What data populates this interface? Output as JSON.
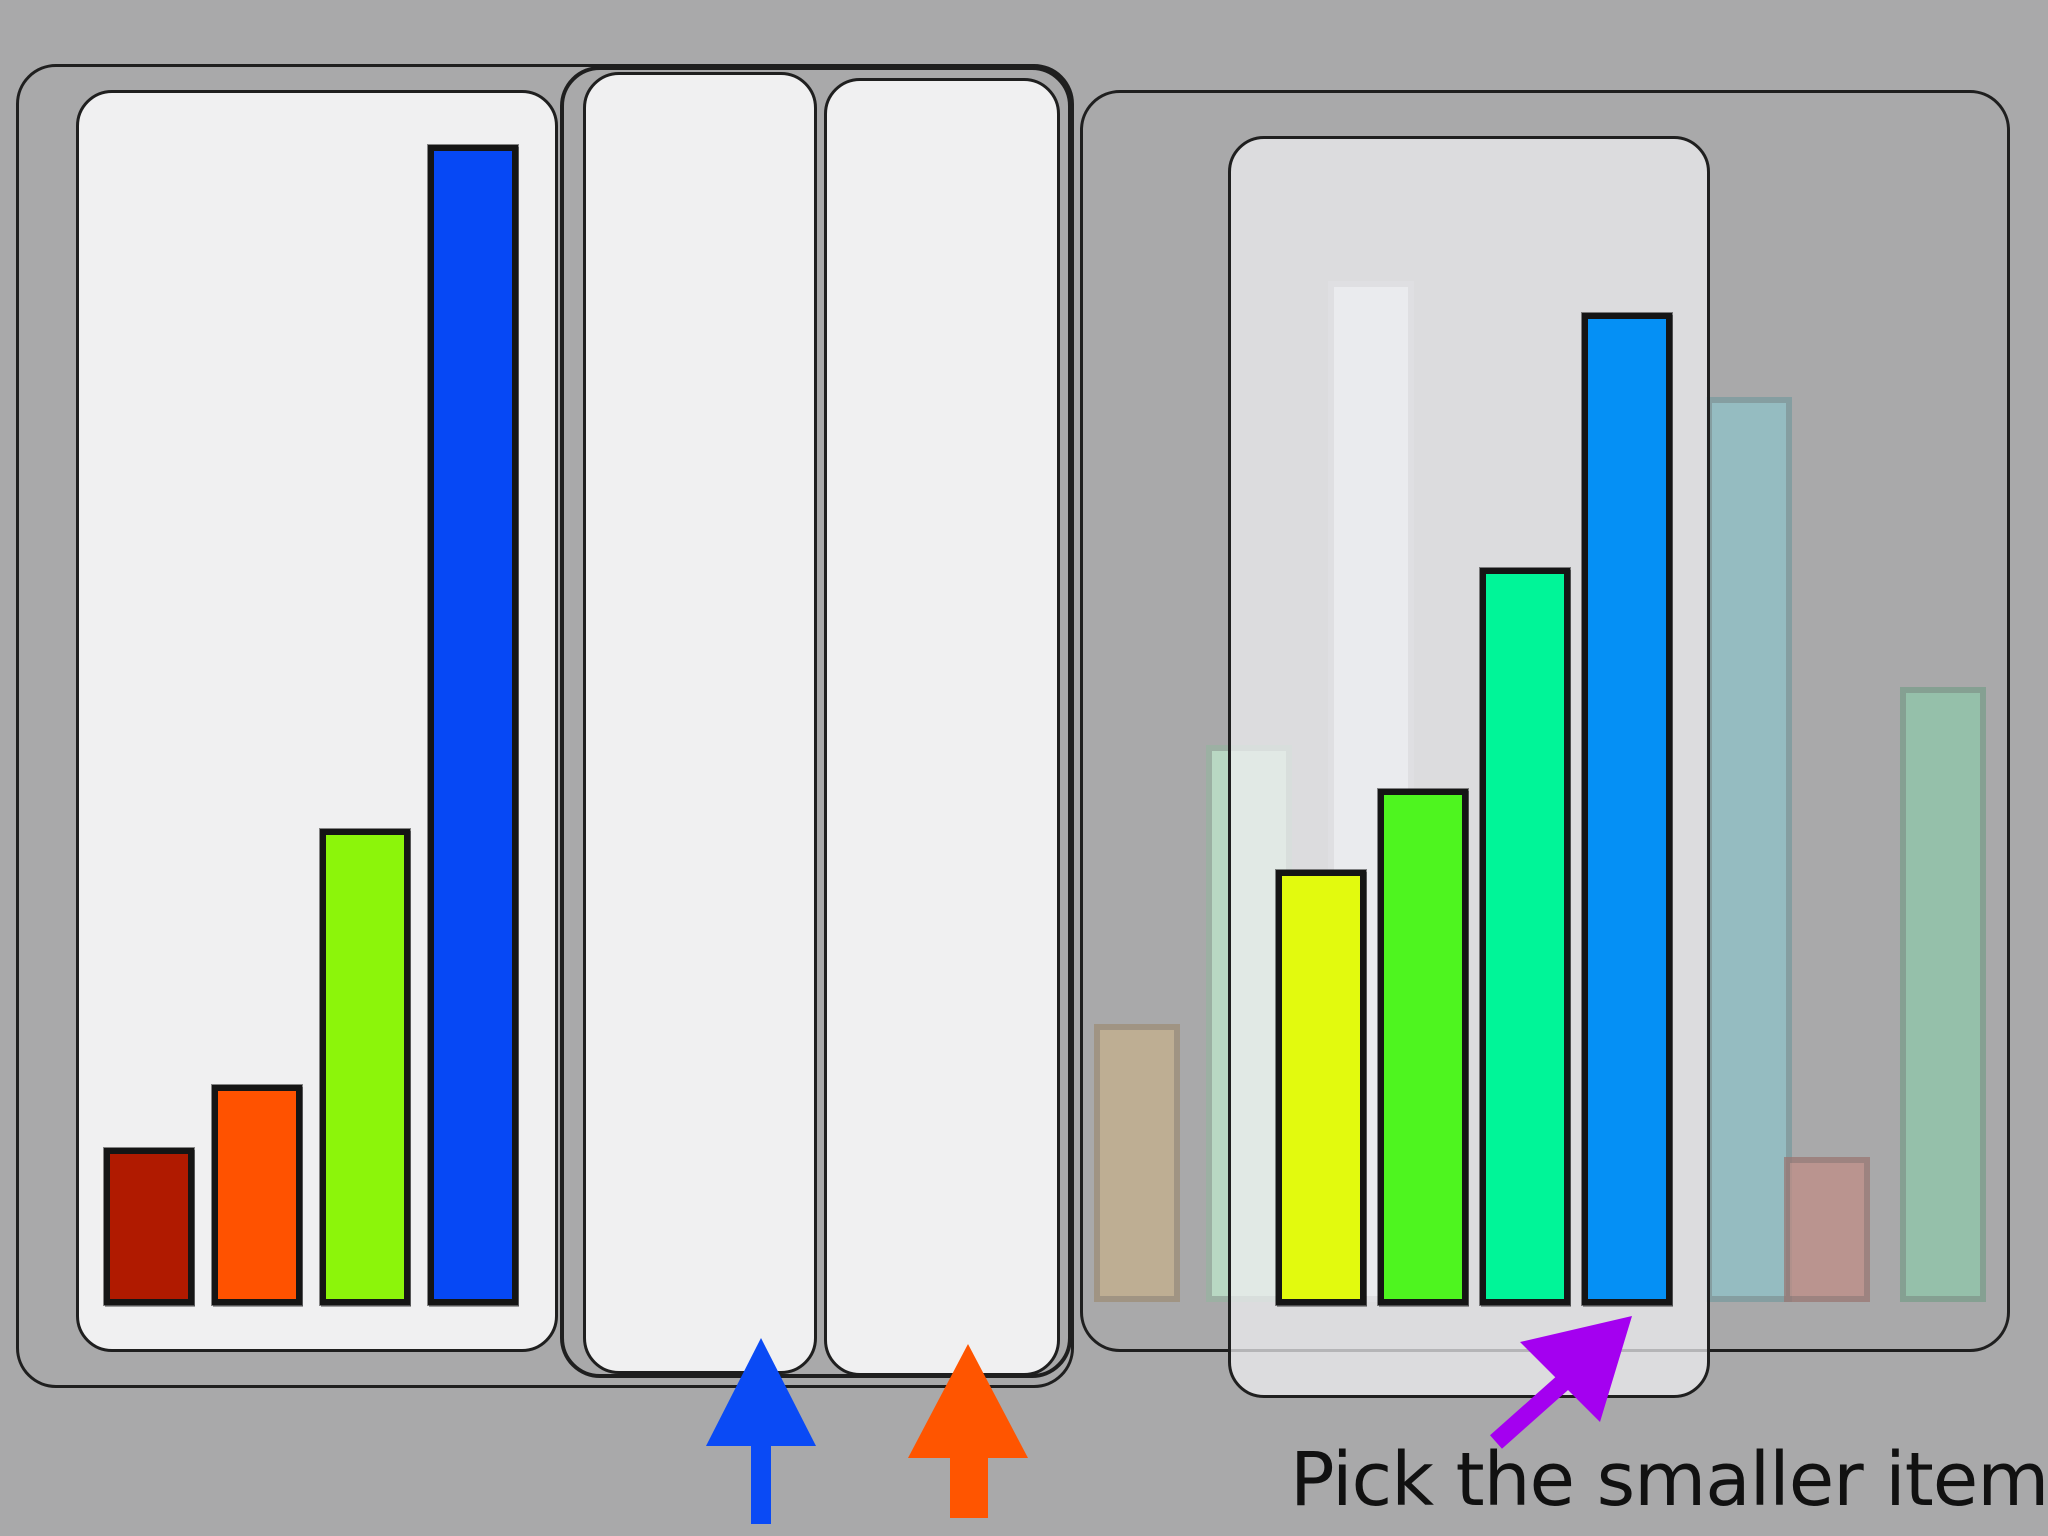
{
  "instruction": "Pick the smaller item",
  "colors": {
    "background": "#a9a9aa",
    "panel": "#f0f0f1",
    "blue_arrow": "#0a4af5",
    "orange_arrow": "#ff5500",
    "purple_arrow": "#a400f0"
  },
  "icons": [
    "blue-up-arrow-icon",
    "orange-up-arrow-icon",
    "purple-cursor-arrow-icon"
  ],
  "left_set": {
    "bars": [
      {
        "color": "#b01a00",
        "value": 0.135
      },
      {
        "color": "#ff5200",
        "value": 0.19
      },
      {
        "color": "#8cf50a",
        "value": 0.41
      },
      {
        "color": "#0648f5",
        "value": 1.0
      }
    ]
  },
  "right_set": {
    "bars": [
      {
        "color": "#e2fa0e",
        "value": 0.375
      },
      {
        "color": "#4ef51f",
        "value": 0.445
      },
      {
        "color": "#00f598",
        "value": 0.635
      },
      {
        "color": "#0590f5",
        "value": 0.855
      }
    ],
    "ghost_bars": [
      {
        "color": "#c6b08c",
        "value": 0.24
      },
      {
        "color": "#bfe8cc",
        "value": 0.48
      },
      {
        "color": "#eef2f3",
        "value": 0.88
      },
      {
        "color": "#8fc3c9",
        "value": 0.78
      },
      {
        "color": "#c08d86",
        "value": 0.125
      },
      {
        "color": "#8fc8aa",
        "value": 0.53
      }
    ]
  }
}
